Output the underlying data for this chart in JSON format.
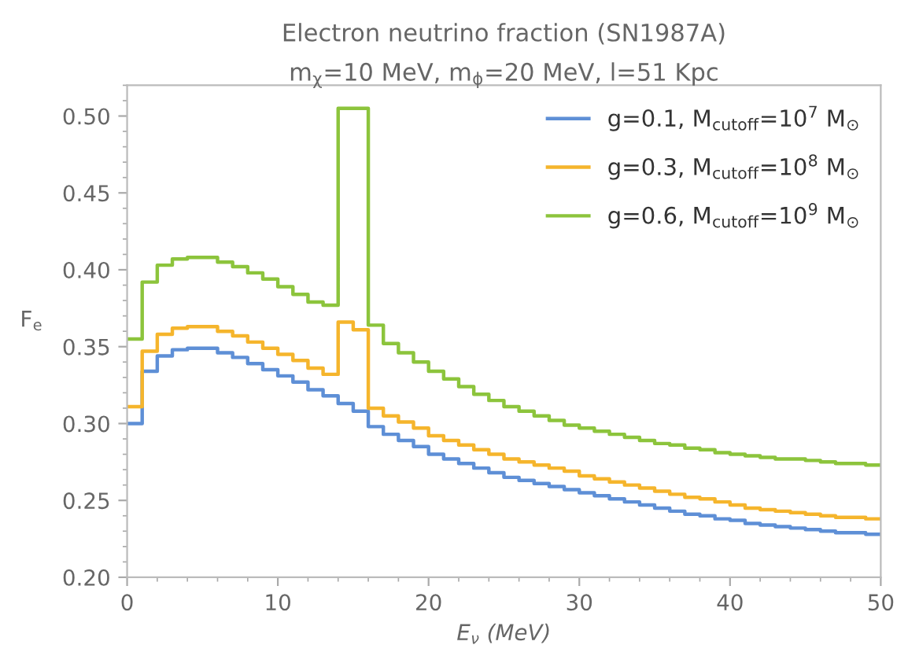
{
  "chart_data": {
    "type": "step",
    "title": "Electron neutrino fraction (SN1987A)",
    "subtitle": "m$_{χ}$=10 MeV, m$_{ϕ}$=20 MeV, l=51 Kpc",
    "xlabel": "E$_{ν}$ (MeV)",
    "ylabel": "F$_{e}$",
    "x": [
      0,
      1,
      2,
      3,
      4,
      5,
      6,
      7,
      8,
      9,
      10,
      11,
      12,
      13,
      14,
      15,
      16,
      17,
      18,
      19,
      20,
      21,
      22,
      23,
      24,
      25,
      26,
      27,
      28,
      29,
      30,
      31,
      32,
      33,
      34,
      35,
      36,
      37,
      38,
      39,
      40,
      41,
      42,
      43,
      44,
      45,
      46,
      47,
      48,
      49,
      50
    ],
    "series": [
      {
        "name": "g=0.1, M$_{cutoff}$=10$^{7}$ M$_{⊙}$",
        "color": "#5e8fd6",
        "values": [
          0.3,
          0.334,
          0.344,
          0.348,
          0.349,
          0.349,
          0.346,
          0.343,
          0.339,
          0.335,
          0.331,
          0.327,
          0.322,
          0.318,
          0.313,
          0.308,
          0.298,
          0.293,
          0.289,
          0.285,
          0.28,
          0.277,
          0.274,
          0.271,
          0.268,
          0.265,
          0.263,
          0.261,
          0.259,
          0.257,
          0.255,
          0.253,
          0.251,
          0.249,
          0.247,
          0.245,
          0.243,
          0.241,
          0.24,
          0.238,
          0.237,
          0.235,
          0.234,
          0.233,
          0.232,
          0.231,
          0.23,
          0.229,
          0.229,
          0.228,
          0.228
        ]
      },
      {
        "name": "g=0.3, M$_{cutoff}$=10$^{8}$ M$_{⊙}$",
        "color": "#f5b52c",
        "values": [
          0.311,
          0.347,
          0.358,
          0.362,
          0.363,
          0.363,
          0.36,
          0.357,
          0.353,
          0.349,
          0.345,
          0.341,
          0.336,
          0.332,
          0.366,
          0.361,
          0.31,
          0.305,
          0.301,
          0.297,
          0.292,
          0.289,
          0.286,
          0.283,
          0.28,
          0.277,
          0.275,
          0.273,
          0.271,
          0.269,
          0.266,
          0.264,
          0.262,
          0.26,
          0.258,
          0.256,
          0.254,
          0.252,
          0.251,
          0.249,
          0.247,
          0.245,
          0.244,
          0.243,
          0.242,
          0.241,
          0.24,
          0.239,
          0.239,
          0.238,
          0.238
        ]
      },
      {
        "name": "g=0.6, M$_{cutoff}$=10$^{9}$ M$_{⊙}$",
        "color": "#8cc43c",
        "values": [
          0.355,
          0.392,
          0.403,
          0.407,
          0.408,
          0.408,
          0.405,
          0.402,
          0.398,
          0.394,
          0.389,
          0.384,
          0.379,
          0.377,
          0.505,
          0.505,
          0.364,
          0.352,
          0.346,
          0.34,
          0.334,
          0.329,
          0.324,
          0.319,
          0.315,
          0.311,
          0.308,
          0.305,
          0.302,
          0.299,
          0.297,
          0.295,
          0.293,
          0.291,
          0.289,
          0.287,
          0.286,
          0.284,
          0.283,
          0.281,
          0.28,
          0.279,
          0.278,
          0.277,
          0.277,
          0.276,
          0.275,
          0.274,
          0.274,
          0.273,
          0.273
        ]
      }
    ],
    "xlim": [
      0,
      50
    ],
    "xticks": [
      0,
      10,
      20,
      30,
      40,
      50
    ],
    "ylim": [
      0.2,
      0.52
    ],
    "yticks": [
      {
        "value": 0.2,
        "label": "0.20"
      },
      {
        "value": 0.25,
        "label": "0.25"
      },
      {
        "value": 0.3,
        "label": "0.30"
      },
      {
        "value": 0.35,
        "label": "0.35"
      },
      {
        "value": 0.4,
        "label": "0.40"
      },
      {
        "value": 0.45,
        "label": "0.45"
      },
      {
        "value": 0.5,
        "label": "0.50"
      }
    ],
    "legend": "top right"
  }
}
